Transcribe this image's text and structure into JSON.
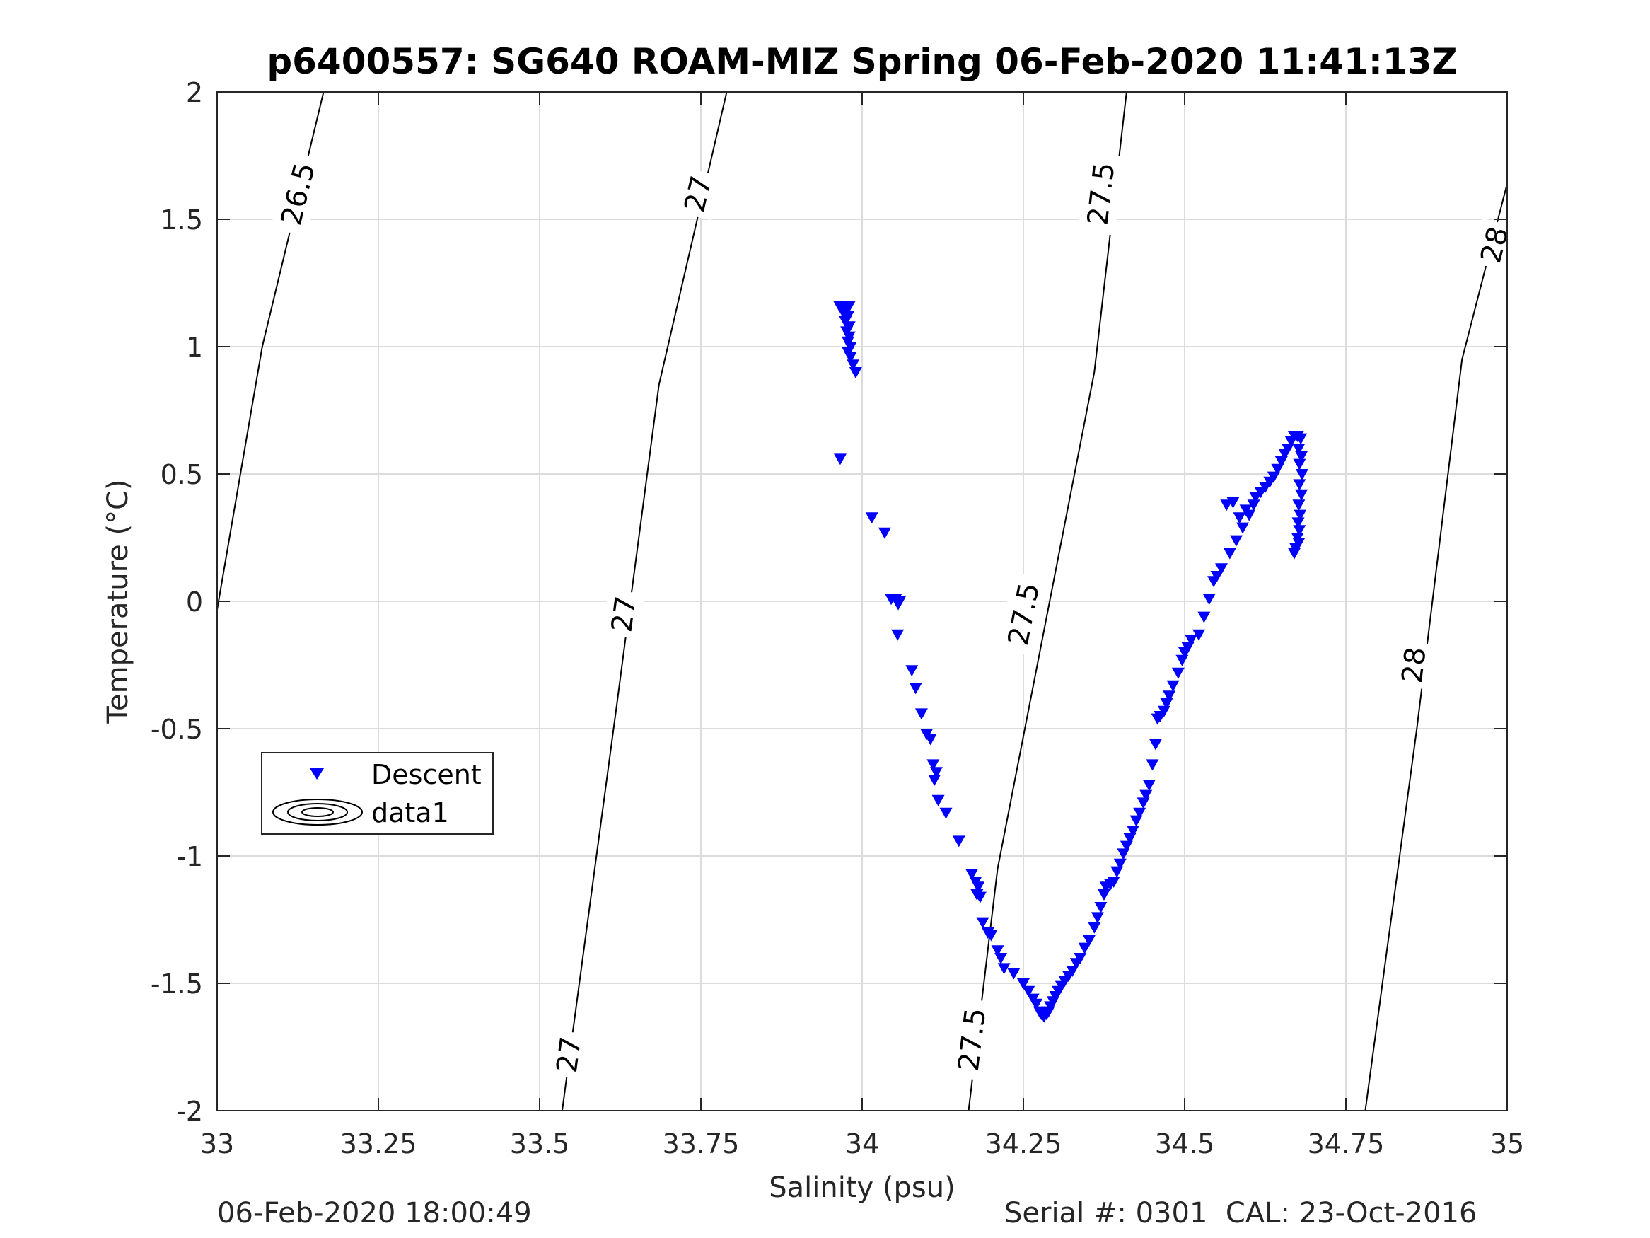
{
  "footer": {
    "left": "06-Feb-2020 18:00:49",
    "right": "Serial #: 0301  CAL: 23-Oct-2016"
  },
  "chart_data": {
    "type": "scatter",
    "title": "p6400557: SG640 ROAM-MIZ Spring 06-Feb-2020 11:41:13Z",
    "xlabel": "Salinity (psu)",
    "ylabel": "Temperature (°C)",
    "xlim": [
      33,
      35
    ],
    "ylim": [
      -2,
      2
    ],
    "xticks": [
      "33",
      "33.25",
      "33.5",
      "33.75",
      "34",
      "34.25",
      "34.5",
      "34.75",
      "35"
    ],
    "yticks": [
      "2",
      "1.5",
      "1",
      "0.5",
      "0",
      "-0.5",
      "-1",
      "-1.5",
      "-2"
    ],
    "grid": true,
    "legend": {
      "position": "middle-left",
      "entries": [
        "Descent",
        "data1"
      ]
    },
    "colors": {
      "descent": "#0000ff",
      "contour": "#000000",
      "grid": "#dcdcdc",
      "axis": "#262626"
    },
    "marker": "downward-triangle",
    "contours": [
      {
        "label": "26.5",
        "points": [
          [
            32.99,
            -0.18
          ],
          [
            33.07,
            1.0
          ],
          [
            33.165,
            2.0
          ]
        ],
        "labels_at": [
          [
            33.125,
            1.6
          ]
        ]
      },
      {
        "label": "27",
        "points": [
          [
            33.535,
            -2.0
          ],
          [
            33.62,
            -0.4
          ],
          [
            33.685,
            0.85
          ],
          [
            33.79,
            2.0
          ]
        ],
        "labels_at": [
          [
            33.545,
            -1.78
          ],
          [
            33.63,
            -0.05
          ],
          [
            33.745,
            1.6
          ]
        ]
      },
      {
        "label": "27.5",
        "points": [
          [
            34.165,
            -2.0
          ],
          [
            34.21,
            -1.05
          ],
          [
            34.36,
            0.9
          ],
          [
            34.41,
            2.0
          ]
        ],
        "labels_at": [
          [
            34.17,
            -1.72
          ],
          [
            34.25,
            -0.05
          ],
          [
            34.37,
            1.6
          ]
        ]
      },
      {
        "label": "28",
        "points": [
          [
            34.78,
            -2.0
          ],
          [
            34.86,
            -0.5
          ],
          [
            34.93,
            0.95
          ],
          [
            35.0,
            1.64
          ]
        ],
        "labels_at": [
          [
            34.855,
            -0.25
          ],
          [
            34.98,
            1.4
          ]
        ]
      }
    ],
    "series": [
      {
        "name": "Descent",
        "points": [
          [
            33.965,
            1.16
          ],
          [
            33.97,
            1.15
          ],
          [
            33.975,
            1.16
          ],
          [
            33.98,
            1.16
          ],
          [
            33.972,
            1.13
          ],
          [
            33.978,
            1.12
          ],
          [
            33.974,
            1.1
          ],
          [
            33.98,
            1.08
          ],
          [
            33.976,
            1.06
          ],
          [
            33.98,
            1.04
          ],
          [
            33.978,
            1.02
          ],
          [
            33.982,
            1.0
          ],
          [
            33.978,
            0.98
          ],
          [
            33.982,
            0.96
          ],
          [
            33.986,
            0.93
          ],
          [
            33.99,
            0.9
          ],
          [
            33.966,
            0.56
          ],
          [
            34.015,
            0.33
          ],
          [
            34.035,
            0.27
          ],
          [
            34.045,
            0.01
          ],
          [
            34.052,
            0.01
          ],
          [
            34.056,
            -0.01
          ],
          [
            34.058,
            0.0
          ],
          [
            34.055,
            -0.13
          ],
          [
            34.077,
            -0.27
          ],
          [
            34.083,
            -0.34
          ],
          [
            34.092,
            -0.44
          ],
          [
            34.1,
            -0.52
          ],
          [
            34.106,
            -0.54
          ],
          [
            34.11,
            -0.64
          ],
          [
            34.115,
            -0.67
          ],
          [
            34.112,
            -0.7
          ],
          [
            34.118,
            -0.78
          ],
          [
            34.13,
            -0.83
          ],
          [
            34.15,
            -0.94
          ],
          [
            34.17,
            -1.07
          ],
          [
            34.176,
            -1.1
          ],
          [
            34.18,
            -1.12
          ],
          [
            34.178,
            -1.15
          ],
          [
            34.183,
            -1.16
          ],
          [
            34.187,
            -1.26
          ],
          [
            34.195,
            -1.3
          ],
          [
            34.2,
            -1.31
          ],
          [
            34.21,
            -1.37
          ],
          [
            34.215,
            -1.4
          ],
          [
            34.22,
            -1.44
          ],
          [
            34.235,
            -1.46
          ],
          [
            34.25,
            -1.5
          ],
          [
            34.258,
            -1.53
          ],
          [
            34.265,
            -1.56
          ],
          [
            34.27,
            -1.58
          ],
          [
            34.275,
            -1.61
          ],
          [
            34.278,
            -1.62
          ],
          [
            34.282,
            -1.63
          ],
          [
            34.286,
            -1.62
          ],
          [
            34.289,
            -1.61
          ],
          [
            34.292,
            -1.59
          ],
          [
            34.296,
            -1.57
          ],
          [
            34.3,
            -1.55
          ],
          [
            34.304,
            -1.53
          ],
          [
            34.309,
            -1.51
          ],
          [
            34.314,
            -1.49
          ],
          [
            34.32,
            -1.47
          ],
          [
            34.326,
            -1.45
          ],
          [
            34.332,
            -1.42
          ],
          [
            34.338,
            -1.4
          ],
          [
            34.345,
            -1.36
          ],
          [
            34.352,
            -1.33
          ],
          [
            34.36,
            -1.28
          ],
          [
            34.365,
            -1.24
          ],
          [
            34.37,
            -1.2
          ],
          [
            34.375,
            -1.15
          ],
          [
            34.378,
            -1.12
          ],
          [
            34.385,
            -1.11
          ],
          [
            34.39,
            -1.1
          ],
          [
            34.395,
            -1.06
          ],
          [
            34.4,
            -1.03
          ],
          [
            34.405,
            -0.99
          ],
          [
            34.41,
            -0.96
          ],
          [
            34.415,
            -0.93
          ],
          [
            34.42,
            -0.9
          ],
          [
            34.425,
            -0.86
          ],
          [
            34.43,
            -0.83
          ],
          [
            34.436,
            -0.79
          ],
          [
            34.44,
            -0.76
          ],
          [
            34.445,
            -0.72
          ],
          [
            34.45,
            -0.64
          ],
          [
            34.455,
            -0.56
          ],
          [
            34.458,
            -0.46
          ],
          [
            34.462,
            -0.45
          ],
          [
            34.468,
            -0.43
          ],
          [
            34.472,
            -0.4
          ],
          [
            34.476,
            -0.37
          ],
          [
            34.482,
            -0.33
          ],
          [
            34.49,
            -0.28
          ],
          [
            34.496,
            -0.23
          ],
          [
            34.5,
            -0.2
          ],
          [
            34.505,
            -0.18
          ],
          [
            34.51,
            -0.15
          ],
          [
            34.522,
            -0.13
          ],
          [
            34.53,
            -0.06
          ],
          [
            34.538,
            0.01
          ],
          [
            34.545,
            0.08
          ],
          [
            34.55,
            0.1
          ],
          [
            34.557,
            0.13
          ],
          [
            34.57,
            0.19
          ],
          [
            34.58,
            0.24
          ],
          [
            34.59,
            0.29
          ],
          [
            34.6,
            0.34
          ],
          [
            34.607,
            0.38
          ],
          [
            34.61,
            0.41
          ],
          [
            34.618,
            0.43
          ],
          [
            34.625,
            0.45
          ],
          [
            34.632,
            0.47
          ],
          [
            34.638,
            0.49
          ],
          [
            34.644,
            0.52
          ],
          [
            34.65,
            0.55
          ],
          [
            34.655,
            0.58
          ],
          [
            34.66,
            0.6
          ],
          [
            34.665,
            0.63
          ],
          [
            34.67,
            0.65
          ],
          [
            34.675,
            0.65
          ],
          [
            34.68,
            0.64
          ],
          [
            34.677,
            0.6
          ],
          [
            34.681,
            0.57
          ],
          [
            34.678,
            0.54
          ],
          [
            34.682,
            0.5
          ],
          [
            34.678,
            0.46
          ],
          [
            34.681,
            0.42
          ],
          [
            34.677,
            0.38
          ],
          [
            34.679,
            0.34
          ],
          [
            34.676,
            0.31
          ],
          [
            34.678,
            0.28
          ],
          [
            34.675,
            0.25
          ],
          [
            34.677,
            0.23
          ],
          [
            34.672,
            0.21
          ],
          [
            34.67,
            0.19
          ],
          [
            34.575,
            0.39
          ],
          [
            34.585,
            0.33
          ],
          [
            34.595,
            0.36
          ],
          [
            34.565,
            0.38
          ]
        ]
      }
    ]
  }
}
